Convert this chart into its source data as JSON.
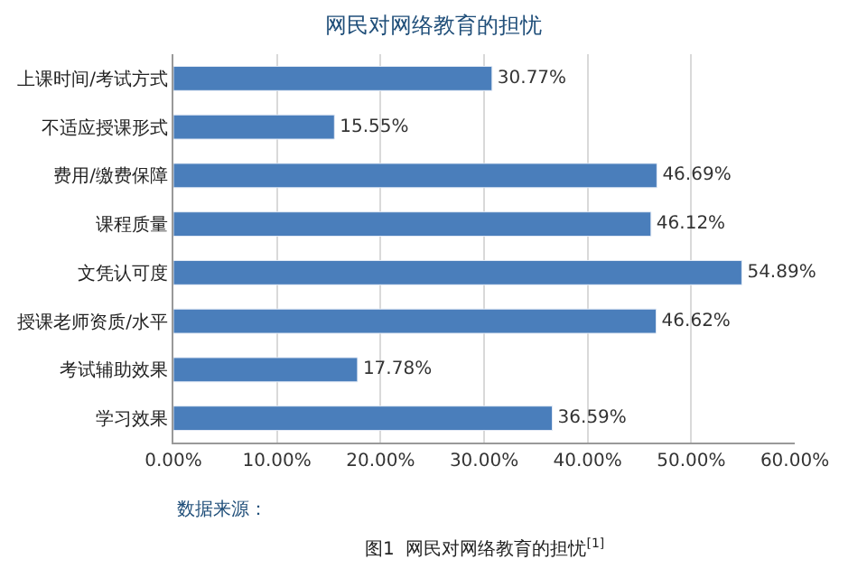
{
  "chart_data": {
    "type": "bar",
    "orientation": "horizontal",
    "title": "网民对网络教育的担忧",
    "categories": [
      "上课时间/考试方式",
      "不适应授课形式",
      "费用/缴费保障",
      "课程质量",
      "文凭认可度",
      "授课老师资质/水平",
      "考试辅助效果",
      "学习效果"
    ],
    "values": [
      30.77,
      15.55,
      46.69,
      46.12,
      54.89,
      46.62,
      17.78,
      36.59
    ],
    "value_labels": [
      "30.77%",
      "15.55%",
      "46.69%",
      "46.12%",
      "54.89%",
      "46.62%",
      "17.78%",
      "36.59%"
    ],
    "color": "#4a7ebb",
    "xlim": [
      0,
      60
    ],
    "xticks": [
      {
        "value": 0,
        "label": "0.00%"
      },
      {
        "value": 10,
        "label": "10.00%"
      },
      {
        "value": 20,
        "label": "20.00%"
      },
      {
        "value": 30,
        "label": "30.00%"
      },
      {
        "value": 40,
        "label": "40.00%"
      },
      {
        "value": 50,
        "label": "50.00%"
      },
      {
        "value": 60,
        "label": "60.00%"
      }
    ],
    "grid": "x",
    "legend": false,
    "annotations": [
      "数据来源：",
      "图1  网民对网络教育的担忧$^{[1]}$"
    ]
  }
}
